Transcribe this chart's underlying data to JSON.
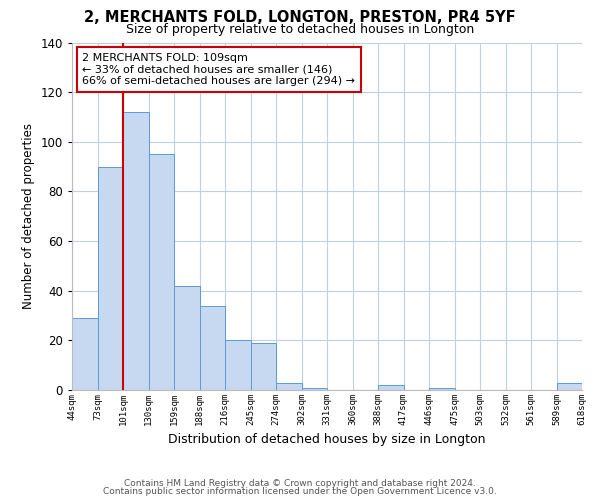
{
  "title": "2, MERCHANTS FOLD, LONGTON, PRESTON, PR4 5YF",
  "subtitle": "Size of property relative to detached houses in Longton",
  "xlabel": "Distribution of detached houses by size in Longton",
  "ylabel": "Number of detached properties",
  "bin_labels": [
    "44sqm",
    "73sqm",
    "101sqm",
    "130sqm",
    "159sqm",
    "188sqm",
    "216sqm",
    "245sqm",
    "274sqm",
    "302sqm",
    "331sqm",
    "360sqm",
    "388sqm",
    "417sqm",
    "446sqm",
    "475sqm",
    "503sqm",
    "532sqm",
    "561sqm",
    "589sqm",
    "618sqm"
  ],
  "bar_values": [
    29,
    90,
    112,
    95,
    42,
    34,
    20,
    19,
    3,
    1,
    0,
    0,
    2,
    0,
    1,
    0,
    0,
    0,
    0,
    3
  ],
  "bar_color": "#c6d9f0",
  "bar_edgecolor": "#5b9bd5",
  "vline_color": "#cc0000",
  "ylim": [
    0,
    140
  ],
  "yticks": [
    0,
    20,
    40,
    60,
    80,
    100,
    120,
    140
  ],
  "annotation_title": "2 MERCHANTS FOLD: 109sqm",
  "annotation_line1": "← 33% of detached houses are smaller (146)",
  "annotation_line2": "66% of semi-detached houses are larger (294) →",
  "annotation_box_color": "#ffffff",
  "annotation_box_edgecolor": "#cc0000",
  "footer_line1": "Contains HM Land Registry data © Crown copyright and database right 2024.",
  "footer_line2": "Contains public sector information licensed under the Open Government Licence v3.0.",
  "background_color": "#ffffff",
  "grid_color": "#c0d0e0"
}
